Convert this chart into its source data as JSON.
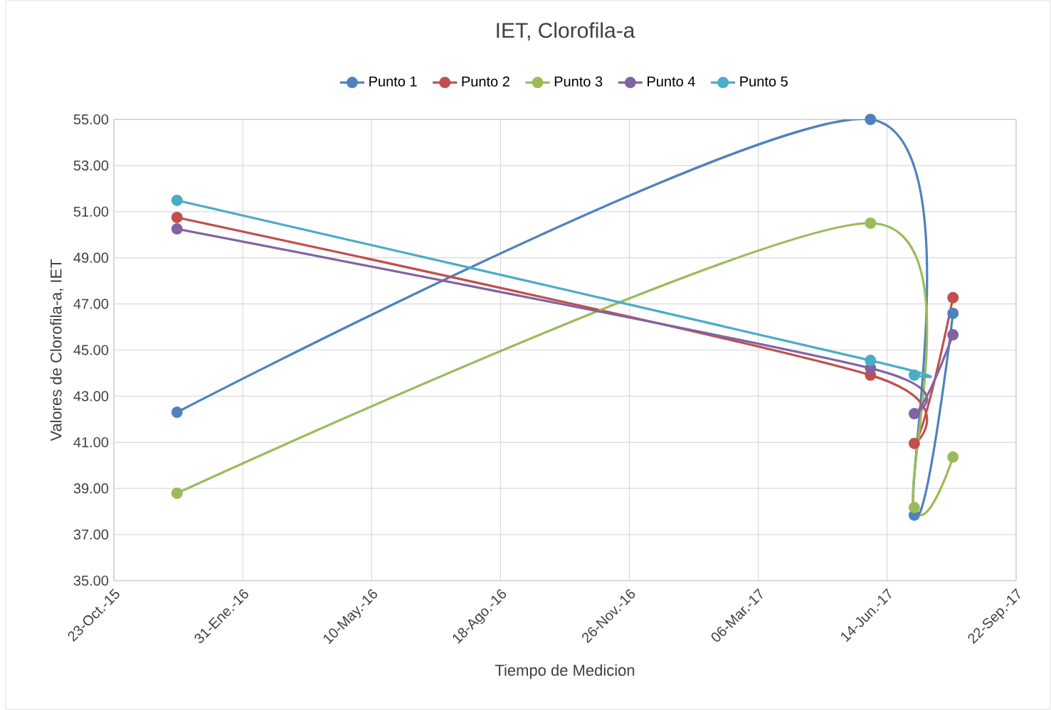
{
  "chart_data": {
    "type": "line",
    "title": "IET, Clorofila-a",
    "xlabel": "Tiempo de Medicion",
    "ylabel": "Valores de Clorofila-a, IET",
    "x": [
      "2015-12-11",
      "2017-06-01",
      "2017-07-05",
      "2017-08-04"
    ],
    "series": [
      {
        "name": "Punto 1",
        "color": "#4f81bd",
        "values": [
          42.3,
          55.0,
          37.84,
          46.59
        ]
      },
      {
        "name": "Punto 2",
        "color": "#c0504d",
        "values": [
          50.75,
          43.91,
          40.95,
          47.27
        ]
      },
      {
        "name": "Punto 3",
        "color": "#9bbb59",
        "values": [
          38.79,
          50.5,
          38.17,
          40.36
        ]
      },
      {
        "name": "Punto 4",
        "color": "#8064a2",
        "values": [
          50.25,
          44.21,
          42.24,
          45.66
        ]
      },
      {
        "name": "Punto 5",
        "color": "#4bacc6",
        "values": [
          51.49,
          44.55,
          43.91,
          null
        ]
      }
    ],
    "xlim": [
      "2015-10-23",
      "2017-09-22"
    ],
    "xticks": [
      {
        "value": "2015-10-23",
        "label": "23-Oct.-15"
      },
      {
        "value": "2016-01-31",
        "label": "31-Ene.-16"
      },
      {
        "value": "2016-05-10",
        "label": "10-May.-16"
      },
      {
        "value": "2016-08-18",
        "label": "18-Ago.-16"
      },
      {
        "value": "2016-11-26",
        "label": "26-Nov.-16"
      },
      {
        "value": "2017-03-06",
        "label": "06-Mar.-17"
      },
      {
        "value": "2017-06-14",
        "label": "14-Jun.-17"
      },
      {
        "value": "2017-09-22",
        "label": "22-Sep.-17"
      }
    ],
    "ylim": [
      35,
      55
    ],
    "yticks": [
      {
        "value": 35,
        "label": "35.00"
      },
      {
        "value": 37,
        "label": "37.00"
      },
      {
        "value": 39,
        "label": "39.00"
      },
      {
        "value": 41,
        "label": "41.00"
      },
      {
        "value": 43,
        "label": "43.00"
      },
      {
        "value": 45,
        "label": "45.00"
      },
      {
        "value": 47,
        "label": "47.00"
      },
      {
        "value": 49,
        "label": "49.00"
      },
      {
        "value": 51,
        "label": "51.00"
      },
      {
        "value": 53,
        "label": "53.00"
      },
      {
        "value": 55,
        "label": "55.00"
      }
    ],
    "grid": true,
    "legend": "top",
    "marker": "circle",
    "line_style": "solid"
  }
}
